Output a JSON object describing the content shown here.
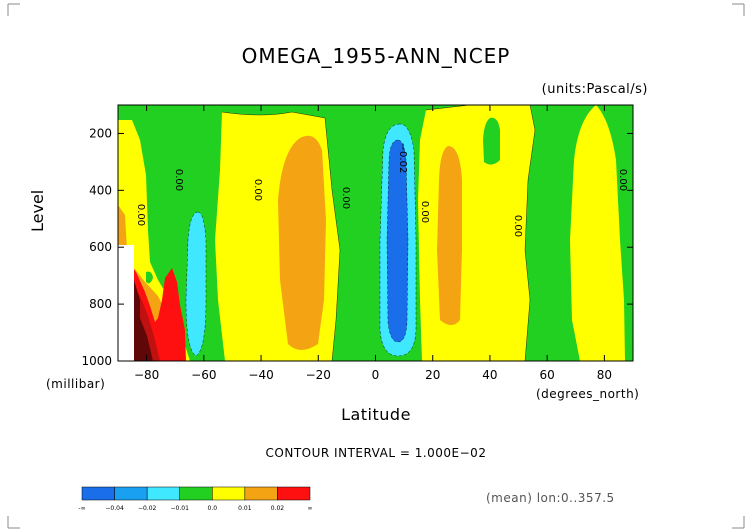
{
  "chart_data": {
    "type": "contour",
    "title": "OMEGA_1955-ANN_NCEP",
    "units": "(units:Pascal/s)",
    "xlabel": "Latitude",
    "xunit": "(degrees_north)",
    "ylabel": "Level",
    "yunit": "(millibar)",
    "xlim": [
      -90,
      90
    ],
    "ylim": [
      1000,
      100
    ],
    "x_ticks": [
      -80,
      -60,
      -40,
      -20,
      0,
      20,
      40,
      60,
      80
    ],
    "x_tick_labels": [
      "−80",
      "−60",
      "−40",
      "−20",
      "0",
      "20",
      "40",
      "60",
      "80"
    ],
    "y_ticks": [
      200,
      400,
      600,
      800,
      1000
    ],
    "y_tick_labels": [
      "200",
      "400",
      "600",
      "800",
      "1000"
    ],
    "contour_interval_text": "CONTOUR INTERVAL = 1.000E−02",
    "contour_labels": [
      "0.00",
      "0.00",
      "0.00",
      "0.00",
      "−0.02",
      "0.00",
      "0.00",
      "0.00",
      "0.00"
    ],
    "mean_text": "(mean) lon:0..357.5",
    "colorbar": {
      "colors": [
        "#1a6eea",
        "#1aa0f0",
        "#40e8ff",
        "#22d022",
        "#ffff00",
        "#f4a412",
        "#ff1010"
      ],
      "labels": [
        "-∞",
        "−0.04",
        "−0.02",
        "−0.01",
        "0.0",
        "0.01",
        "0.02",
        "∞"
      ]
    },
    "field_colors": {
      "neg3": "#1a6eea",
      "neg1": "#40e8ff",
      "zero": "#22d022",
      "pos1": "#ffff00",
      "pos2": "#f4a412",
      "pos3": "#ff1010",
      "pos4": "#c01010",
      "pos5": "#600808"
    },
    "features": [
      {
        "kind": "pos1",
        "lat": [
          -90,
          -80
        ],
        "lev": [
          120,
          1000
        ]
      },
      {
        "kind": "zero",
        "lat": [
          -80,
          -57
        ],
        "lev": [
          100,
          1000
        ]
      },
      {
        "kind": "pos1",
        "lat": [
          -57,
          -12
        ],
        "lev": [
          130,
          1000
        ]
      },
      {
        "kind": "pos2",
        "lat": [
          -34,
          -16
        ],
        "lev": [
          220,
          900
        ]
      },
      {
        "kind": "neg1",
        "lat": [
          -66,
          -60
        ],
        "lev": [
          480,
          1000
        ]
      },
      {
        "kind": "zero",
        "lat": [
          -12,
          18
        ],
        "lev": [
          100,
          1000
        ]
      },
      {
        "kind": "neg1",
        "lat": [
          0,
          14
        ],
        "lev": [
          170,
          1000
        ]
      },
      {
        "kind": "neg3",
        "lat": [
          3,
          11
        ],
        "lev": [
          200,
          930
        ]
      },
      {
        "kind": "pos1",
        "lat": [
          16,
          50
        ],
        "lev": [
          100,
          1000
        ]
      },
      {
        "kind": "pos2",
        "lat": [
          21,
          30
        ],
        "lev": [
          260,
          830
        ]
      },
      {
        "kind": "zero",
        "lat": [
          37,
          44
        ],
        "lev": [
          120,
          300
        ]
      },
      {
        "kind": "zero",
        "lat": [
          48,
          90
        ],
        "lev": [
          100,
          1000
        ]
      },
      {
        "kind": "pos1",
        "lat": [
          58,
          86
        ],
        "lev": [
          100,
          1000
        ]
      }
    ]
  }
}
